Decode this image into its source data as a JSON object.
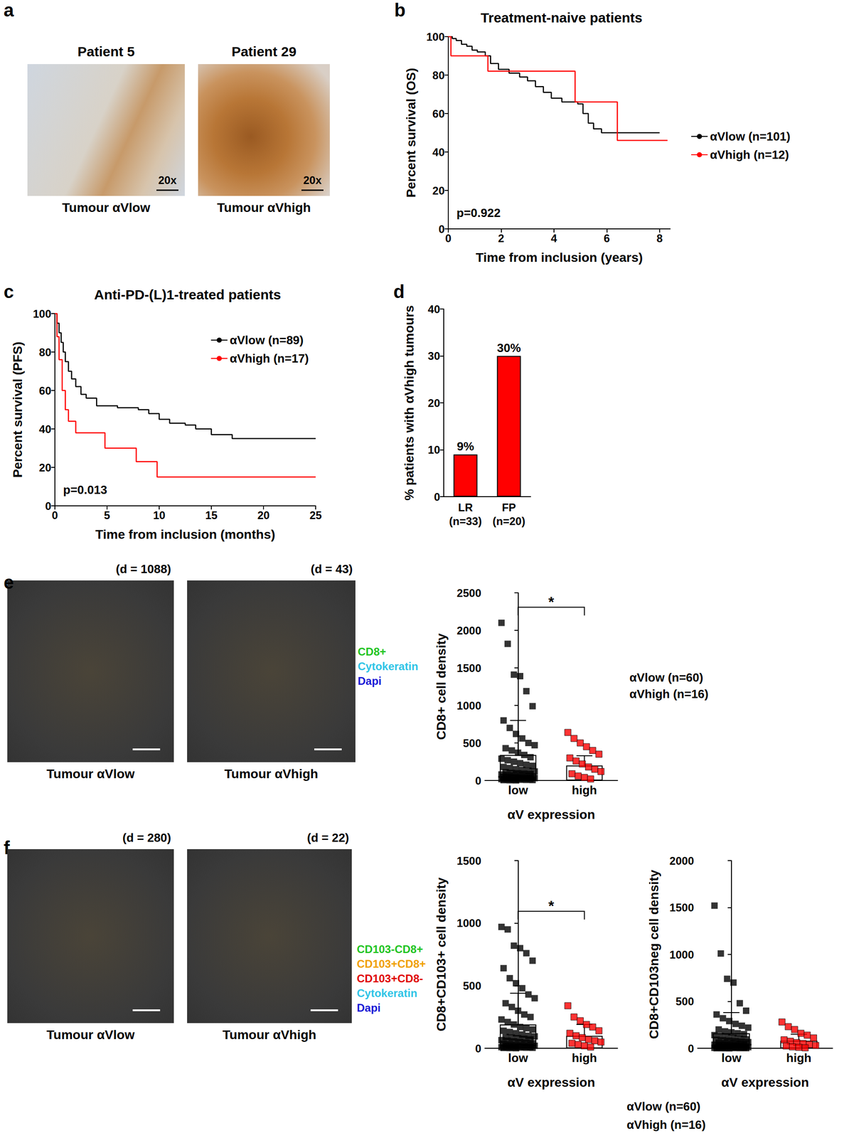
{
  "panel_a": {
    "panel": "a",
    "images": [
      {
        "title": "Patient 5",
        "magnification": "20x",
        "caption": "Tumour αVlow"
      },
      {
        "title": "Patient 29",
        "magnification": "20x",
        "caption": "Tumour αVhigh"
      }
    ]
  },
  "panel_e_images": {
    "images": [
      {
        "density": "(d = 1088)",
        "caption": "Tumour αVlow"
      },
      {
        "density": "(d = 43)",
        "caption": "Tumour αVhigh"
      }
    ],
    "legend": [
      {
        "text": "CD8+",
        "color": "#22c422"
      },
      {
        "text": "Cytokeratin",
        "color": "#2ec4e6"
      },
      {
        "text": "Dapi",
        "color": "#1a1ad6"
      }
    ]
  },
  "panel_f_images": {
    "panel": "f",
    "images": [
      {
        "density": "(d = 280)",
        "caption": "Tumour αVlow"
      },
      {
        "density": "(d = 22)",
        "caption": "Tumour αVhigh"
      }
    ],
    "legend": [
      {
        "text": "CD103-CD8+",
        "color": "#22c422"
      },
      {
        "text": "CD103+CD8+",
        "color": "#f0a000"
      },
      {
        "text": "CD103+CD8-",
        "color": "#e00000"
      },
      {
        "text": "Cytokeratin",
        "color": "#2ec4e6"
      },
      {
        "text": "Dapi",
        "color": "#1a1ad6"
      }
    ],
    "group_legend": [
      "αVlow (n=60)",
      "αVhigh (n=16)"
    ]
  },
  "chart_data": [
    {
      "type": "line",
      "panel": "b",
      "title": "Treatment-naive patients",
      "x_label": "Time from inclusion (years)",
      "y_label": "Percent survival (OS)",
      "xlim": [
        0,
        8.4
      ],
      "xticks": [
        0,
        2,
        4,
        6,
        8
      ],
      "ylim": [
        0,
        100
      ],
      "yticks": [
        0,
        20,
        40,
        60,
        80,
        100
      ],
      "annotation": "p=0.922",
      "line_style": "step",
      "legend": "right",
      "series": [
        {
          "name": "αVlow (n=101)",
          "color": "#000000",
          "x": [
            0,
            0.15,
            0.3,
            0.5,
            0.7,
            0.9,
            1.1,
            1.4,
            1.6,
            1.9,
            2.3,
            2.7,
            3.0,
            3.3,
            3.6,
            3.9,
            4.3,
            4.9,
            5.1,
            5.3,
            5.5,
            5.8,
            8.0
          ],
          "values": [
            100,
            99,
            98,
            96,
            95,
            93,
            92,
            90,
            86,
            83,
            81,
            79,
            77,
            74,
            71,
            68,
            66,
            65,
            60,
            55,
            52,
            50,
            50
          ]
        },
        {
          "name": "αVhigh (n=12)",
          "color": "#ff0000",
          "x": [
            0,
            0.1,
            1.5,
            4.8,
            6.4,
            8.3
          ],
          "values": [
            100,
            90,
            82,
            66,
            46,
            46
          ]
        }
      ]
    },
    {
      "type": "line",
      "panel": "c",
      "title": "Anti-PD-(L)1-treated patients",
      "x_label": "Time from inclusion (months)",
      "y_label": "Percent survival (PFS)",
      "xlim": [
        0,
        25
      ],
      "xticks": [
        0,
        5,
        10,
        15,
        20,
        25
      ],
      "ylim": [
        0,
        100
      ],
      "yticks": [
        0,
        20,
        40,
        60,
        80,
        100
      ],
      "annotation": "p=0.013",
      "line_style": "step",
      "legend": "top-right",
      "series": [
        {
          "name": "αVlow (n=89)",
          "color": "#000000",
          "x": [
            0,
            0.2,
            0.4,
            0.6,
            0.8,
            1.0,
            1.3,
            1.6,
            2.0,
            2.5,
            3.0,
            4.0,
            6.0,
            8.0,
            9.0,
            10.0,
            11.0,
            12.5,
            13.5,
            15.0,
            17.0,
            25.0
          ],
          "values": [
            100,
            95,
            90,
            85,
            80,
            75,
            70,
            66,
            62,
            58,
            56,
            52,
            51,
            50,
            48,
            45,
            43,
            42,
            40,
            37,
            35,
            35
          ]
        },
        {
          "name": "αVhigh (n=17)",
          "color": "#ff0000",
          "x": [
            0,
            0.2,
            0.4,
            0.7,
            1.0,
            1.3,
            2.0,
            4.8,
            7.8,
            9.8,
            25
          ],
          "values": [
            100,
            88,
            76,
            60,
            50,
            44,
            38,
            30,
            23,
            15,
            15
          ]
        }
      ]
    },
    {
      "type": "bar",
      "panel": "d",
      "y_label": "% patients with αVhigh tumours",
      "categories": [
        "LR\n(n=33)",
        "FP\n(n=20)"
      ],
      "values": [
        9,
        30
      ],
      "value_labels": [
        "9%",
        "30%"
      ],
      "data_labels": true,
      "color": "#ff0000",
      "ylim": [
        0,
        40
      ],
      "yticks": [
        0,
        10,
        20,
        30,
        40
      ]
    },
    {
      "type": "dotbar",
      "panel": "e",
      "y_label": "CD8+ cell density",
      "x_label": "αV expression",
      "categories": [
        "low",
        "high"
      ],
      "values": [
        340,
        200
      ],
      "error": [
        460,
        130
      ],
      "color": "#ffffff",
      "ylim": [
        0,
        2500
      ],
      "yticks": [
        0,
        500,
        1000,
        1500,
        2000,
        2500
      ],
      "significance": "*",
      "group_legend": [
        "αVlow (n=60)",
        "αVhigh (n=16)"
      ],
      "points": [
        {
          "category": "low",
          "color": "#000000",
          "marker": "square",
          "values": [
            2100,
            1820,
            1410,
            1390,
            1190,
            990,
            800,
            700,
            620,
            560,
            500,
            470,
            430,
            400,
            370,
            340,
            310,
            290,
            270,
            250,
            230,
            210,
            195,
            180,
            165,
            150,
            140,
            130,
            120,
            110,
            100,
            95,
            90,
            85,
            80,
            75,
            70,
            65,
            60,
            55,
            50,
            45,
            40,
            38,
            35,
            32,
            30,
            28,
            25,
            22,
            20,
            18,
            15,
            12,
            10,
            8,
            6,
            5,
            3,
            2
          ]
        },
        {
          "category": "high",
          "color": "#ff0000",
          "marker": "square",
          "values": [
            640,
            560,
            500,
            450,
            400,
            350,
            300,
            260,
            220,
            180,
            150,
            120,
            90,
            60,
            40,
            20
          ]
        }
      ]
    },
    {
      "type": "dotbar",
      "y_label": "CD8+CD103+ cell density",
      "x_label": "αV expression",
      "categories": [
        "low",
        "high"
      ],
      "values": [
        190,
        100
      ],
      "error": [
        250,
        90
      ],
      "color": "#ffffff",
      "ylim": [
        0,
        1500
      ],
      "yticks": [
        0,
        500,
        1000,
        1500
      ],
      "significance": "*",
      "points": [
        {
          "category": "low",
          "color": "#000000",
          "marker": "square",
          "values": [
            970,
            950,
            820,
            800,
            760,
            700,
            640,
            560,
            520,
            480,
            430,
            400,
            360,
            330,
            300,
            270,
            250,
            230,
            210,
            190,
            170,
            160,
            150,
            140,
            130,
            120,
            110,
            100,
            95,
            90,
            85,
            80,
            75,
            70,
            65,
            60,
            55,
            50,
            45,
            40,
            36,
            32,
            28,
            25,
            22,
            20,
            18,
            16,
            14,
            12,
            10,
            9,
            8,
            7,
            6,
            5,
            4,
            3,
            2,
            1
          ]
        },
        {
          "category": "high",
          "color": "#ff0000",
          "marker": "square",
          "values": [
            340,
            250,
            220,
            190,
            170,
            140,
            120,
            100,
            85,
            70,
            60,
            50,
            40,
            30,
            20,
            10
          ]
        }
      ]
    },
    {
      "type": "dotbar",
      "y_label": "CD8+CD103neg cell density",
      "x_label": "αV expression",
      "categories": [
        "low",
        "high"
      ],
      "values": [
        160,
        80
      ],
      "error": [
        220,
        70
      ],
      "color": "#ffffff",
      "ylim": [
        0,
        2000
      ],
      "yticks": [
        0,
        500,
        1000,
        1500,
        2000
      ],
      "points": [
        {
          "category": "low",
          "color": "#000000",
          "marker": "square",
          "values": [
            1520,
            1010,
            740,
            700,
            480,
            400,
            360,
            320,
            290,
            260,
            240,
            220,
            200,
            180,
            170,
            160,
            150,
            140,
            130,
            120,
            110,
            100,
            95,
            90,
            85,
            80,
            75,
            70,
            65,
            60,
            55,
            50,
            45,
            40,
            38,
            35,
            32,
            30,
            28,
            25,
            22,
            20,
            18,
            16,
            14,
            12,
            10,
            9,
            8,
            7,
            6,
            5,
            4,
            3,
            3,
            2,
            2,
            1,
            1,
            0
          ]
        },
        {
          "category": "high",
          "color": "#ff0000",
          "marker": "square",
          "values": [
            280,
            230,
            200,
            160,
            140,
            110,
            90,
            75,
            60,
            50,
            40,
            30,
            25,
            15,
            10,
            5
          ]
        }
      ]
    }
  ]
}
